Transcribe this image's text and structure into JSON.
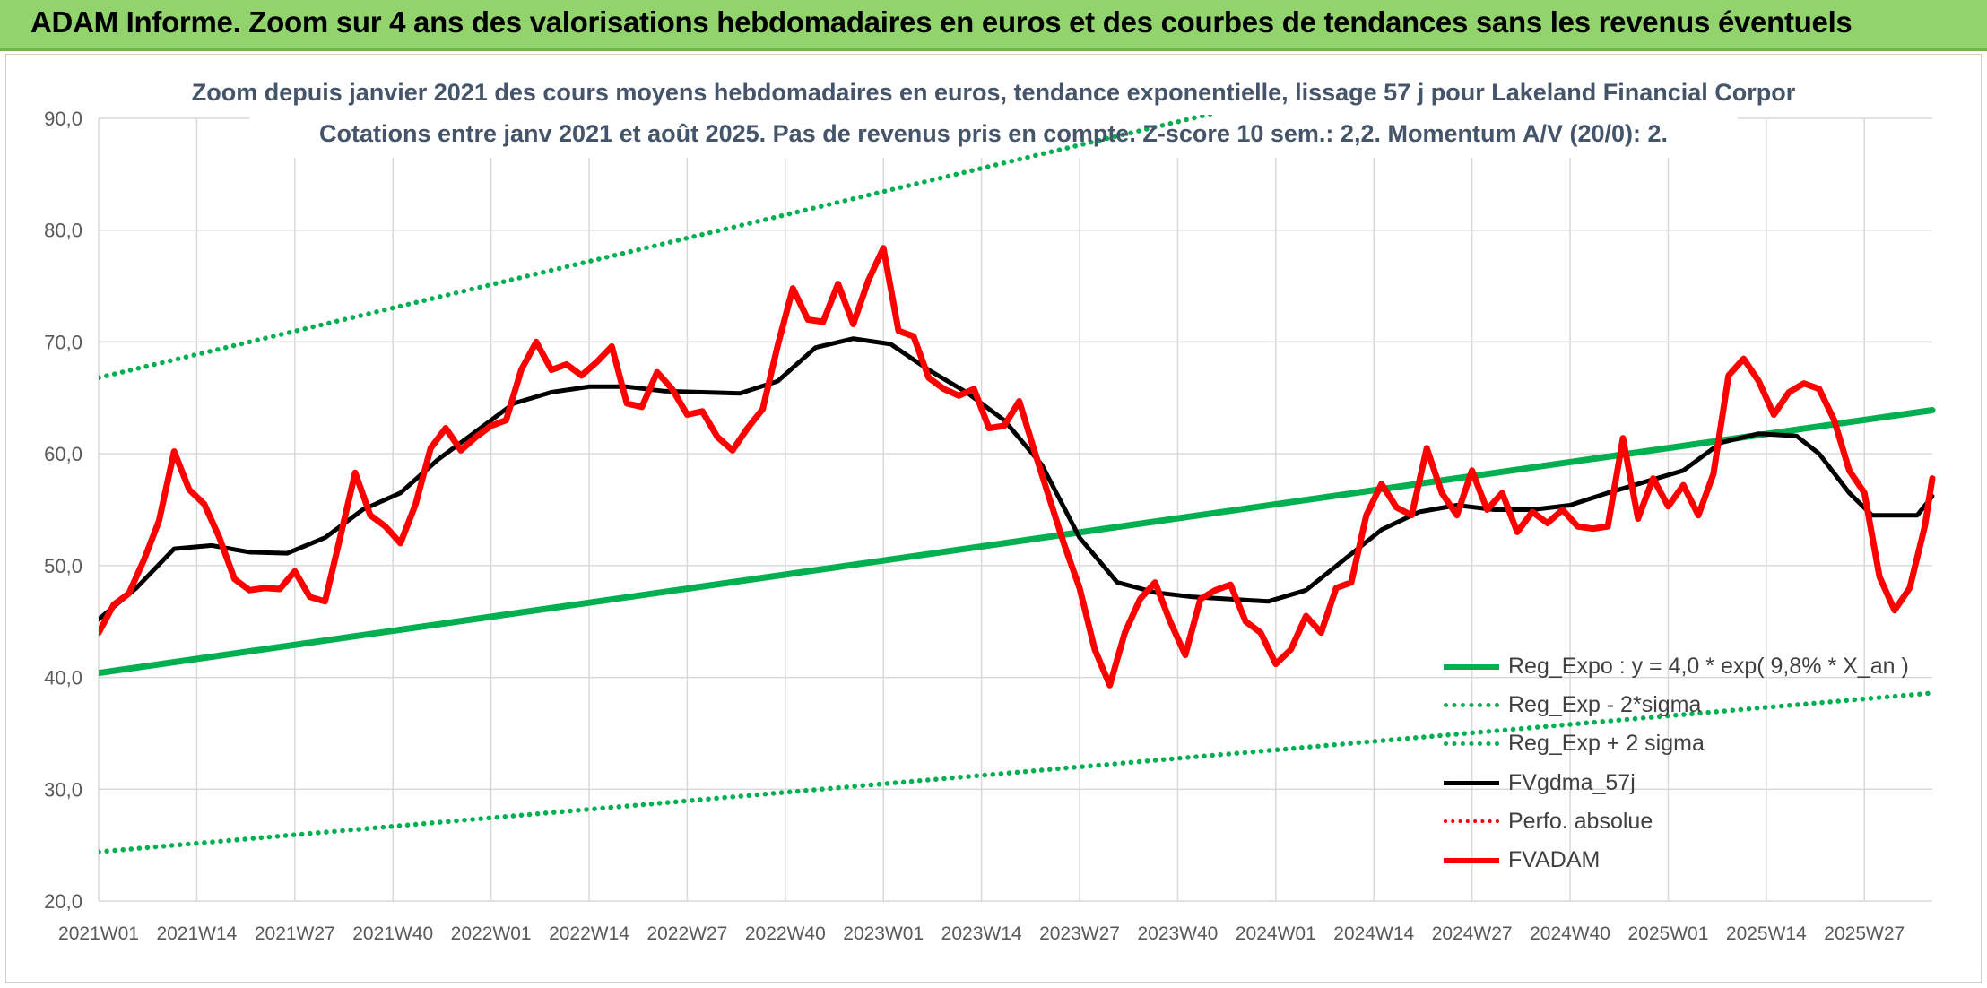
{
  "header": {
    "title": "ADAM Informe. Zoom sur 4 ans des valorisations hebdomadaires en euros et des courbes de tendances sans les revenus éventuels"
  },
  "chart_data": {
    "type": "line",
    "title": "Zoom depuis janvier 2021 des cours moyens hebdomadaires en euros, tendance exponentielle, lissage 57 j pour Lakeland Financial Corpor",
    "subtitle": "Cotations entre janv 2021 et août 2025. Pas de revenus pris en compte. Z-score 10 sem.: 2,2. Momentum A/V (20/0): 2.",
    "xlabel": "",
    "ylabel": "",
    "ylim": [
      20,
      90
    ],
    "yticks": [
      "20,0",
      "30,0",
      "40,0",
      "50,0",
      "60,0",
      "70,0",
      "80,0",
      "90,0"
    ],
    "xticks": [
      "2021W01",
      "2021W14",
      "2021W27",
      "2021W40",
      "2022W01",
      "2022W14",
      "2022W27",
      "2022W40",
      "2023W01",
      "2023W14",
      "2023W27",
      "2023W40",
      "2024W01",
      "2024W14",
      "2024W27",
      "2024W40",
      "2025W01",
      "2025W14",
      "2025W27"
    ],
    "x_range_weeks": [
      0,
      243
    ],
    "grid": true,
    "legend_position": "bottom-right",
    "series": [
      {
        "name": "Reg_Expo : y = 4,0 * exp( 9,8% *  X_an )",
        "color": "#00b050",
        "style": "solid",
        "points": [
          [
            0,
            40.4
          ],
          [
            243,
            63.9
          ]
        ]
      },
      {
        "name": "Reg_Exp - 2*sigma",
        "color": "#00b050",
        "style": "dotted",
        "points": [
          [
            0,
            24.4
          ],
          [
            243,
            38.6
          ]
        ]
      },
      {
        "name": "Reg_Exp + 2 sigma",
        "color": "#00b050",
        "style": "dotted",
        "points": [
          [
            0,
            66.8
          ],
          [
            243,
            105.7
          ]
        ]
      },
      {
        "name": "FVgdma_57j",
        "color": "#000000",
        "style": "solid",
        "points": [
          [
            0,
            45.2
          ],
          [
            5,
            48
          ],
          [
            10,
            51.5
          ],
          [
            15,
            51.8
          ],
          [
            20,
            51.2
          ],
          [
            25,
            51.1
          ],
          [
            30,
            52.5
          ],
          [
            35,
            55
          ],
          [
            40,
            56.5
          ],
          [
            45,
            59.5
          ],
          [
            50,
            62
          ],
          [
            55,
            64.5
          ],
          [
            60,
            65.5
          ],
          [
            65,
            66
          ],
          [
            70,
            66
          ],
          [
            75,
            65.6
          ],
          [
            80,
            65.5
          ],
          [
            85,
            65.4
          ],
          [
            90,
            66.5
          ],
          [
            95,
            69.5
          ],
          [
            100,
            70.3
          ],
          [
            105,
            69.8
          ],
          [
            110,
            67.5
          ],
          [
            115,
            65.5
          ],
          [
            120,
            63
          ],
          [
            125,
            59
          ],
          [
            130,
            52.5
          ],
          [
            135,
            48.5
          ],
          [
            140,
            47.6
          ],
          [
            145,
            47.2
          ],
          [
            150,
            47
          ],
          [
            155,
            46.8
          ],
          [
            160,
            47.8
          ],
          [
            165,
            50.5
          ],
          [
            170,
            53.2
          ],
          [
            175,
            54.8
          ],
          [
            180,
            55.4
          ],
          [
            185,
            55
          ],
          [
            190,
            55
          ],
          [
            195,
            55.4
          ],
          [
            200,
            56.5
          ],
          [
            205,
            57.5
          ],
          [
            210,
            58.5
          ],
          [
            215,
            61
          ],
          [
            220,
            61.8
          ],
          [
            225,
            61.6
          ],
          [
            228,
            60
          ],
          [
            232,
            56.5
          ],
          [
            235,
            54.5
          ],
          [
            238,
            54.5
          ],
          [
            241,
            54.5
          ],
          [
            243,
            56.2
          ]
        ]
      },
      {
        "name": "Perfo. absolue",
        "color": "#ff0000",
        "style": "dotted",
        "points": []
      },
      {
        "name": "FVADAM",
        "color": "#ff0000",
        "style": "solid",
        "points": [
          [
            0,
            44
          ],
          [
            2,
            46.5
          ],
          [
            4,
            47.5
          ],
          [
            6,
            50.5
          ],
          [
            8,
            54
          ],
          [
            10,
            60.2
          ],
          [
            12,
            56.8
          ],
          [
            14,
            55.5
          ],
          [
            16,
            52.5
          ],
          [
            18,
            48.8
          ],
          [
            20,
            47.8
          ],
          [
            22,
            48
          ],
          [
            24,
            47.9
          ],
          [
            26,
            49.5
          ],
          [
            28,
            47.2
          ],
          [
            30,
            46.8
          ],
          [
            32,
            52.5
          ],
          [
            34,
            58.3
          ],
          [
            36,
            54.5
          ],
          [
            38,
            53.5
          ],
          [
            40,
            52
          ],
          [
            42,
            55.5
          ],
          [
            44,
            60.5
          ],
          [
            46,
            62.3
          ],
          [
            48,
            60.3
          ],
          [
            50,
            61.5
          ],
          [
            52,
            62.5
          ],
          [
            54,
            63
          ],
          [
            56,
            67.5
          ],
          [
            58,
            70
          ],
          [
            60,
            67.5
          ],
          [
            62,
            68
          ],
          [
            64,
            67
          ],
          [
            66,
            68.2
          ],
          [
            68,
            69.6
          ],
          [
            70,
            64.5
          ],
          [
            72,
            64.2
          ],
          [
            74,
            67.3
          ],
          [
            76,
            65.8
          ],
          [
            78,
            63.5
          ],
          [
            80,
            63.8
          ],
          [
            82,
            61.5
          ],
          [
            84,
            60.3
          ],
          [
            86,
            62.3
          ],
          [
            88,
            64
          ],
          [
            90,
            69.7
          ],
          [
            92,
            74.8
          ],
          [
            94,
            72
          ],
          [
            96,
            71.8
          ],
          [
            98,
            75.2
          ],
          [
            100,
            71.6
          ],
          [
            102,
            75.5
          ],
          [
            104,
            78.4
          ],
          [
            106,
            71
          ],
          [
            108,
            70.5
          ],
          [
            110,
            66.8
          ],
          [
            112,
            65.8
          ],
          [
            114,
            65.2
          ],
          [
            116,
            65.8
          ],
          [
            118,
            62.3
          ],
          [
            120,
            62.5
          ],
          [
            122,
            64.7
          ],
          [
            124,
            60.3
          ],
          [
            126,
            56
          ],
          [
            128,
            51.8
          ],
          [
            130,
            48
          ],
          [
            132,
            42.5
          ],
          [
            134,
            39.3
          ],
          [
            136,
            44
          ],
          [
            138,
            47
          ],
          [
            140,
            48.5
          ],
          [
            142,
            45
          ],
          [
            144,
            42
          ],
          [
            146,
            47
          ],
          [
            148,
            47.8
          ],
          [
            150,
            48.3
          ],
          [
            152,
            45
          ],
          [
            154,
            44
          ],
          [
            156,
            41.2
          ],
          [
            158,
            42.5
          ],
          [
            160,
            45.5
          ],
          [
            162,
            44
          ],
          [
            164,
            48
          ],
          [
            166,
            48.5
          ],
          [
            168,
            54.5
          ],
          [
            170,
            57.3
          ],
          [
            172,
            55.2
          ],
          [
            174,
            54.5
          ],
          [
            176,
            60.5
          ],
          [
            178,
            56.5
          ],
          [
            180,
            54.5
          ],
          [
            182,
            58.5
          ],
          [
            184,
            55
          ],
          [
            186,
            56.5
          ],
          [
            188,
            53
          ],
          [
            190,
            54.8
          ],
          [
            192,
            53.8
          ],
          [
            194,
            55
          ],
          [
            196,
            53.5
          ],
          [
            198,
            53.3
          ],
          [
            200,
            53.5
          ],
          [
            202,
            61.4
          ],
          [
            204,
            54.2
          ],
          [
            206,
            57.8
          ],
          [
            208,
            55.3
          ],
          [
            210,
            57.2
          ],
          [
            212,
            54.5
          ],
          [
            214,
            58.2
          ],
          [
            216,
            67
          ],
          [
            218,
            68.5
          ],
          [
            220,
            66.5
          ],
          [
            222,
            63.5
          ],
          [
            224,
            65.5
          ],
          [
            226,
            66.3
          ],
          [
            228,
            65.8
          ],
          [
            230,
            63
          ],
          [
            232,
            58.5
          ],
          [
            234,
            56.5
          ],
          [
            236,
            49
          ],
          [
            238,
            46
          ],
          [
            240,
            48
          ],
          [
            242,
            53.5
          ],
          [
            243,
            57.8
          ]
        ]
      }
    ]
  }
}
